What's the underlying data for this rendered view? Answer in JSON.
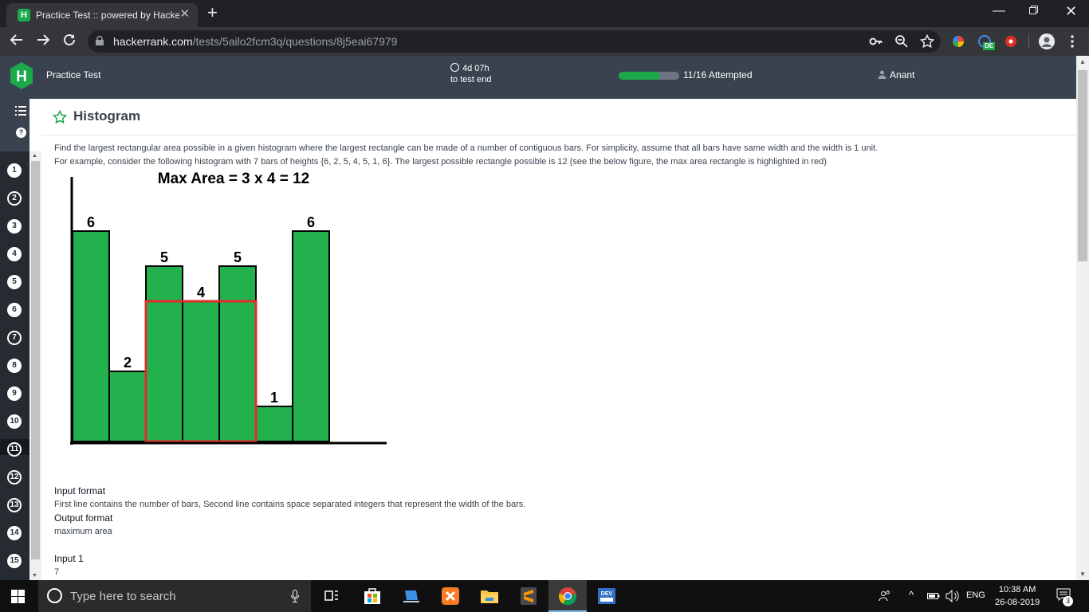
{
  "browser": {
    "tab_title": "Practice Test :: powered by HackerRank",
    "tab_favicon_letter": "H",
    "url_domain": "hackerrank.com",
    "url_path": "/tests/5ailo2fcm3q/questions/8j5eai67979",
    "extension_badge": "DE"
  },
  "header": {
    "logo_letter": "H",
    "title": "Practice Test",
    "timer_value": "4d 07h",
    "timer_caption": "to test end",
    "progress_fraction": 0.6875,
    "attempted": "11/16 Attempted",
    "user": "Anant"
  },
  "rail": {
    "questions": [
      "1",
      "2",
      "3",
      "4",
      "5",
      "6",
      "7",
      "8",
      "9",
      "10",
      "11",
      "12",
      "13",
      "14",
      "15"
    ],
    "ringed": [
      "2",
      "7",
      "11",
      "12",
      "13"
    ],
    "current": "9"
  },
  "question": {
    "title": "Histogram",
    "para1": "Find the largest rectangular area possible in a given histogram where the largest rectangle can be made of a number of contiguous bars. For simplicity, assume that all bars have same width and the width is 1 unit.",
    "para2": "For example, consider the following histogram with 7 bars of heights {6, 2, 5, 4, 5, 1, 6}. The largest possible rectangle possible is 12 (see the below figure, the max area rectangle is highlighted in red)",
    "input_format_label": "Input format",
    "input_format_text": "First line contains the number of bars, Second line contains space separated integers that represent the width of the bars.",
    "output_format_label": "Output format",
    "output_format_text": "maximum area",
    "input1_label": "Input 1",
    "input1_value": "7"
  },
  "figure": {
    "caption": "Max Area = 3 x 4  = 12",
    "heights": [
      6,
      2,
      5,
      4,
      5,
      1,
      6
    ],
    "labels": [
      "6",
      "2",
      "5",
      "4",
      "5",
      "1",
      "6"
    ],
    "highlight_start": 2,
    "highlight_count": 3,
    "highlight_height": 4,
    "bar_color": "#22b14c",
    "highlight_color": "#e32b2b"
  },
  "taskbar": {
    "search_placeholder": "Type here to search",
    "lang": "ENG",
    "time": "10:38 AM",
    "date": "26-08-2019",
    "notif_count": "3"
  }
}
